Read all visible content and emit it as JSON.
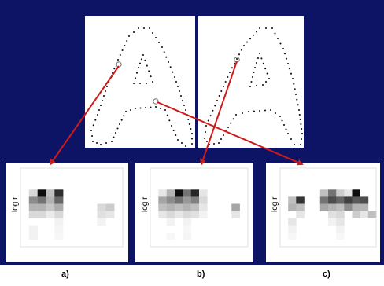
{
  "figure": {
    "background_color": "#0d1466",
    "arrow_color": "#cc1b1b",
    "letter_glyph": "A",
    "histograms": [
      {
        "label": "a)",
        "axis_label": "log r",
        "grid": [
          [
            0,
            0,
            0,
            0,
            0,
            0,
            0,
            0,
            0,
            0,
            0,
            0
          ],
          [
            0,
            0,
            0,
            0,
            0,
            0,
            0,
            0,
            0,
            0,
            0,
            0
          ],
          [
            0,
            0,
            0,
            0,
            0,
            0,
            0,
            0,
            0,
            0,
            0,
            0
          ],
          [
            0,
            0.15,
            0.95,
            0.25,
            0.82,
            0,
            0,
            0,
            0,
            0,
            0,
            0
          ],
          [
            0,
            0.45,
            0.55,
            0.3,
            0.6,
            0,
            0,
            0,
            0,
            0,
            0,
            0
          ],
          [
            0,
            0.3,
            0.3,
            0.22,
            0.32,
            0,
            0,
            0,
            0,
            0.15,
            0.2,
            0
          ],
          [
            0,
            0.15,
            0.15,
            0.08,
            0.15,
            0,
            0,
            0,
            0,
            0.12,
            0.1,
            0
          ],
          [
            0,
            0,
            0,
            0,
            0.05,
            0,
            0,
            0,
            0,
            0.05,
            0,
            0
          ],
          [
            0,
            0.05,
            0,
            0,
            0.04,
            0,
            0,
            0,
            0,
            0,
            0,
            0
          ],
          [
            0,
            0.05,
            0,
            0,
            0.03,
            0,
            0,
            0,
            0,
            0,
            0,
            0
          ],
          [
            0,
            0,
            0,
            0,
            0,
            0,
            0,
            0,
            0,
            0,
            0,
            0
          ]
        ]
      },
      {
        "label": "b)",
        "axis_label": "log r",
        "grid": [
          [
            0,
            0,
            0,
            0,
            0,
            0,
            0,
            0,
            0,
            0,
            0,
            0
          ],
          [
            0,
            0,
            0,
            0,
            0,
            0,
            0,
            0,
            0,
            0,
            0,
            0
          ],
          [
            0,
            0,
            0,
            0,
            0,
            0,
            0,
            0,
            0,
            0,
            0,
            0
          ],
          [
            0,
            0.1,
            0.3,
            0.95,
            0.55,
            0.85,
            0.1,
            0,
            0,
            0,
            0,
            0
          ],
          [
            0,
            0.35,
            0.45,
            0.55,
            0.4,
            0.5,
            0.15,
            0,
            0,
            0,
            0,
            0
          ],
          [
            0,
            0.25,
            0.3,
            0.25,
            0.3,
            0.25,
            0.1,
            0,
            0,
            0,
            0.35,
            0
          ],
          [
            0,
            0.1,
            0.15,
            0.1,
            0.15,
            0.12,
            0.05,
            0,
            0,
            0,
            0.1,
            0
          ],
          [
            0,
            0,
            0.05,
            0,
            0.05,
            0,
            0,
            0,
            0,
            0,
            0,
            0
          ],
          [
            0,
            0,
            0,
            0,
            0.03,
            0,
            0,
            0,
            0,
            0,
            0,
            0
          ],
          [
            0,
            0,
            0.03,
            0,
            0.04,
            0,
            0,
            0,
            0,
            0,
            0,
            0
          ],
          [
            0,
            0,
            0,
            0,
            0,
            0,
            0,
            0,
            0,
            0,
            0,
            0
          ]
        ]
      },
      {
        "label": "c)",
        "axis_label": "log r",
        "grid": [
          [
            0,
            0,
            0,
            0,
            0,
            0,
            0,
            0,
            0,
            0,
            0,
            0
          ],
          [
            0,
            0,
            0,
            0,
            0,
            0,
            0,
            0,
            0,
            0,
            0,
            0
          ],
          [
            0,
            0,
            0,
            0,
            0,
            0,
            0,
            0,
            0,
            0,
            0,
            0
          ],
          [
            0,
            0,
            0,
            0,
            0,
            0.25,
            0.55,
            0.2,
            0.1,
            0.95,
            0,
            0
          ],
          [
            0,
            0.25,
            0.8,
            0,
            0,
            0.55,
            0.7,
            0.6,
            0.75,
            0.65,
            0.7,
            0
          ],
          [
            0,
            0.3,
            0.25,
            0,
            0,
            0.35,
            0.3,
            0.25,
            0.45,
            0.3,
            0.3,
            0
          ],
          [
            0,
            0,
            0.1,
            0,
            0,
            0,
            0.12,
            0.15,
            0,
            0.2,
            0.1,
            0.25
          ],
          [
            0,
            0.1,
            0,
            0,
            0,
            0,
            0.05,
            0.1,
            0,
            0,
            0,
            0
          ],
          [
            0,
            0.05,
            0,
            0,
            0,
            0,
            0,
            0.05,
            0,
            0,
            0,
            0
          ],
          [
            0,
            0.03,
            0,
            0,
            0,
            0,
            0,
            0.03,
            0,
            0,
            0,
            0
          ],
          [
            0,
            0,
            0,
            0,
            0,
            0,
            0,
            0,
            0,
            0,
            0,
            0
          ]
        ]
      }
    ]
  }
}
